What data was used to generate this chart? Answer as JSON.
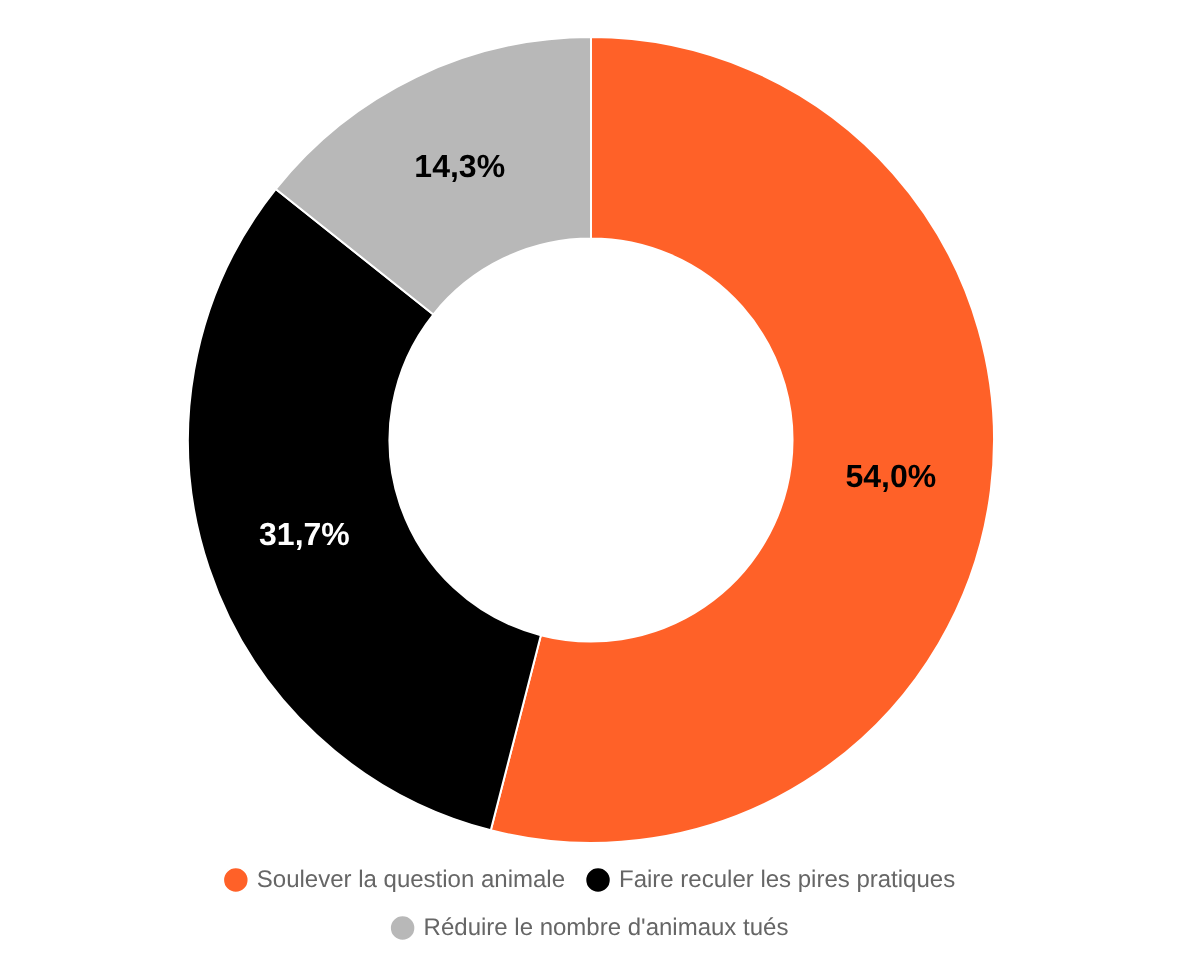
{
  "chart_data": {
    "type": "donut",
    "categories": [
      "Soulever la question animale",
      "Faire reculer les pires pratiques",
      "Réduire le nombre d'animaux tués"
    ],
    "values": [
      54.0,
      31.7,
      14.3
    ],
    "colors": [
      "#ff6128",
      "#000000",
      "#b8b8b8"
    ],
    "value_labels": [
      "54,0%",
      "31,7%",
      "14,3%"
    ],
    "legend": "bottom"
  }
}
